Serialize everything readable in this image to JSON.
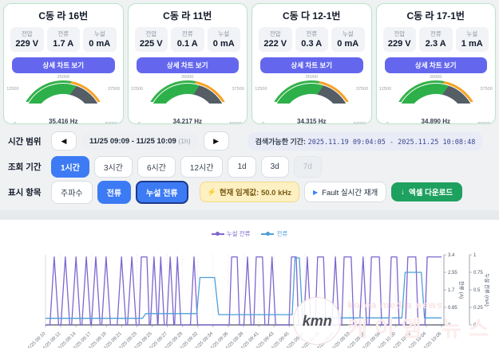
{
  "cards": [
    {
      "title": "C동 라 16번",
      "stats": [
        {
          "label": "전압",
          "value": "229 V"
        },
        {
          "label": "전류",
          "value": "1.7 A"
        },
        {
          "label": "누설",
          "value": "0 mA"
        }
      ],
      "button": "상세 차트 보기",
      "gauge": {
        "value": 35416,
        "value_label": "35,416 Hz",
        "min": 0,
        "max": 50000,
        "ticks": [
          "0",
          "12500",
          "25000",
          "37500",
          "50000"
        ]
      }
    },
    {
      "title": "C동 라 11번",
      "stats": [
        {
          "label": "전압",
          "value": "225 V"
        },
        {
          "label": "전류",
          "value": "0.1 A"
        },
        {
          "label": "누설",
          "value": "0 mA"
        }
      ],
      "button": "상세 차트 보기",
      "gauge": {
        "value": 34217,
        "value_label": "34,217 Hz",
        "min": 0,
        "max": 50000,
        "ticks": [
          "0",
          "12500",
          "25000",
          "37500",
          "50000"
        ]
      }
    },
    {
      "title": "C동 다 12-1번",
      "stats": [
        {
          "label": "전압",
          "value": "222 V"
        },
        {
          "label": "전류",
          "value": "0.3 A"
        },
        {
          "label": "누설",
          "value": "0 mA"
        }
      ],
      "button": "상세 차트 보기",
      "gauge": {
        "value": 34315,
        "value_label": "34,315 Hz",
        "min": 0,
        "max": 50000,
        "ticks": [
          "0",
          "12500",
          "25000",
          "37500",
          "50000"
        ]
      }
    },
    {
      "title": "C동 라 17-1번",
      "stats": [
        {
          "label": "전압",
          "value": "229 V"
        },
        {
          "label": "전류",
          "value": "2.3 A"
        },
        {
          "label": "누설",
          "value": "1 mA"
        }
      ],
      "button": "상세 차트 보기",
      "gauge": {
        "value": 34890,
        "value_label": "34,890 Hz",
        "min": 0,
        "max": 50000,
        "ticks": [
          "0",
          "12500",
          "25000",
          "37500",
          "50000"
        ]
      }
    }
  ],
  "controls": {
    "time_range_label": "시간 범위",
    "prev_icon": "◀",
    "next_icon": "▶",
    "time_range_value": "11/25 09:09 - 11/25 10:09",
    "time_range_span": "(1h)",
    "searchable_label": "검색가능한 기간:",
    "searchable_value": "2025.11.19 09:04:05 - 2025.11.25 10:08:48",
    "period_label": "조회 기간",
    "periods": [
      {
        "label": "1시간",
        "state": "active"
      },
      {
        "label": "3시간",
        "state": "normal"
      },
      {
        "label": "6시간",
        "state": "normal"
      },
      {
        "label": "12시간",
        "state": "normal"
      },
      {
        "label": "1d",
        "state": "normal"
      },
      {
        "label": "3d",
        "state": "normal"
      },
      {
        "label": "7d",
        "state": "disabled"
      }
    ],
    "display_label": "표시 항목",
    "display_options": [
      {
        "label": "주파수",
        "state": "normal"
      },
      {
        "label": "전류",
        "state": "active"
      },
      {
        "label": "누설 전류",
        "state": "active-outlined"
      }
    ],
    "threshold_icon": "⚡",
    "threshold_chip": "현재 임계값: 50.0 kHz",
    "fault_play_icon": "▶",
    "fault_button": "Fault 실시간 재개",
    "excel_icon": "↓",
    "excel_button": "엑셀 다운로드"
  },
  "chart_data": {
    "type": "line",
    "legend": [
      {
        "label": "누설 전류",
        "color": "#7e66cf"
      },
      {
        "label": "전류",
        "color": "#4f9fd8"
      }
    ],
    "x_labels": [
      "11/25 09:10",
      "11/25 09:12",
      "11/25 09:14",
      "11/25 09:17",
      "11/25 09:19",
      "11/25 09:21",
      "11/25 09:23",
      "11/25 09:25",
      "11/25 09:27",
      "11/25 09:29",
      "11/25 09:32",
      "11/25 09:34",
      "11/25 09:36",
      "11/25 09:38",
      "11/25 09:41",
      "11/25 09:43",
      "11/25 09:45",
      "11/25 09:47",
      "11/25 09:49",
      "11/25 09:51",
      "11/25 09:53",
      "11/25 09:56",
      "11/25 09:58",
      "11/25 10:00",
      "11/25 10:02",
      "11/25 10:04",
      "11/25 10:06"
    ],
    "y_axis_current": {
      "label": "전류 (A)",
      "ticks": [
        "3.4",
        "2.55",
        "1.7",
        "0.85",
        "0"
      ],
      "max": 3.4
    },
    "y_axis_leak": {
      "label": "누설 전류 (mA)",
      "ticks": [
        "1",
        "0.75",
        "0.5",
        "0.25",
        "0"
      ],
      "max": 1
    },
    "grid": true,
    "series": [
      {
        "name": "누설 전류",
        "axis": "leak",
        "color": "#7e66cf",
        "unit": "mA",
        "points": [
          [
            0,
            0
          ],
          [
            0.011,
            0
          ],
          [
            0.022,
            0.97
          ],
          [
            0.033,
            0
          ],
          [
            0.039,
            0
          ],
          [
            0.05,
            0.97
          ],
          [
            0.061,
            0
          ],
          [
            0.066,
            0
          ],
          [
            0.077,
            0.97
          ],
          [
            0.088,
            0
          ],
          [
            0.092,
            0
          ],
          [
            0.103,
            0.97
          ],
          [
            0.114,
            0
          ],
          [
            0.116,
            0
          ],
          [
            0.127,
            0.97
          ],
          [
            0.138,
            0
          ],
          [
            0.142,
            0
          ],
          [
            0.153,
            0.97
          ],
          [
            0.164,
            0
          ],
          [
            0.181,
            0
          ],
          [
            0.192,
            0.97
          ],
          [
            0.203,
            0
          ],
          [
            0.207,
            0
          ],
          [
            0.218,
            0.97
          ],
          [
            0.229,
            0
          ],
          [
            0.236,
            0
          ],
          [
            0.242,
            0.97
          ],
          [
            0.256,
            0.97
          ],
          [
            0.262,
            0
          ],
          [
            0.265,
            0
          ],
          [
            0.274,
            0.97
          ],
          [
            0.283,
            0
          ],
          [
            0.284,
            0
          ],
          [
            0.291,
            0.97
          ],
          [
            0.3,
            0
          ],
          [
            0.306,
            0
          ],
          [
            0.315,
            0.97
          ],
          [
            0.324,
            0
          ],
          [
            0.326,
            0
          ],
          [
            0.333,
            0.97
          ],
          [
            0.342,
            0
          ],
          [
            0.366,
            0
          ],
          [
            0.375,
            0.97
          ],
          [
            0.384,
            0
          ],
          [
            0.464,
            0
          ],
          [
            0.47,
            0.97
          ],
          [
            0.484,
            0.97
          ],
          [
            0.49,
            0
          ],
          [
            0.501,
            0
          ],
          [
            0.51,
            0.97
          ],
          [
            0.519,
            0
          ],
          [
            0.526,
            0
          ],
          [
            0.532,
            0.97
          ],
          [
            0.548,
            0.97
          ],
          [
            0.554,
            0
          ],
          [
            0.563,
            0
          ],
          [
            0.572,
            0.97
          ],
          [
            0.581,
            0
          ],
          [
            0.615,
            0
          ],
          [
            0.621,
            0.97
          ],
          [
            0.633,
            0.97
          ],
          [
            0.639,
            0
          ],
          [
            0.652,
            0
          ],
          [
            0.661,
            0.97
          ],
          [
            0.67,
            0
          ],
          [
            0.681,
            0
          ],
          [
            0.687,
            0.97
          ],
          [
            0.702,
            0.97
          ],
          [
            0.708,
            0
          ],
          [
            0.723,
            0
          ],
          [
            0.732,
            0.97
          ],
          [
            0.741,
            0
          ],
          [
            0.748,
            0
          ],
          [
            0.754,
            0.97
          ],
          [
            0.772,
            0.97
          ],
          [
            0.778,
            0
          ],
          [
            0.793,
            0
          ],
          [
            0.802,
            0.97
          ],
          [
            0.811,
            0
          ],
          [
            0.817,
            0
          ],
          [
            0.823,
            0.97
          ],
          [
            0.843,
            0.97
          ],
          [
            0.849,
            0
          ],
          [
            0.867,
            0
          ],
          [
            0.873,
            0.97
          ],
          [
            0.887,
            0.97
          ],
          [
            0.893,
            0
          ],
          [
            0.909,
            0
          ],
          [
            0.915,
            0.97
          ],
          [
            0.935,
            0.97
          ],
          [
            0.941,
            0
          ],
          [
            0.958,
            0
          ],
          [
            0.964,
            0.97
          ],
          [
            1,
            0.97
          ]
        ]
      },
      {
        "name": "전류",
        "axis": "current",
        "color": "#4f9fd8",
        "unit": "A",
        "points": [
          [
            0,
            0.32
          ],
          [
            0.245,
            0.32
          ],
          [
            0.253,
            0.55
          ],
          [
            0.382,
            0.55
          ],
          [
            0.39,
            2.3
          ],
          [
            0.427,
            2.3
          ],
          [
            0.437,
            0.5
          ],
          [
            0.623,
            0.5
          ],
          [
            0.63,
            3.25
          ],
          [
            0.641,
            3.25
          ],
          [
            0.649,
            0.34
          ],
          [
            0.9,
            0.34
          ],
          [
            0.908,
            2.55
          ],
          [
            0.949,
            2.55
          ],
          [
            0.957,
            0.34
          ],
          [
            1,
            0.34
          ]
        ]
      }
    ]
  },
  "watermark": {
    "badge": "kmn",
    "line1": "korea media news",
    "line2": "케이엠 뉴스"
  }
}
